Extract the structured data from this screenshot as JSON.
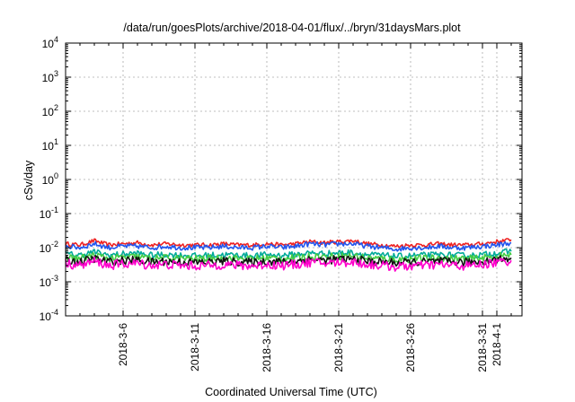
{
  "chart_data": {
    "type": "line",
    "title": "/data/run/goesPlots/archive/2018-04-01/flux/../bryn/31daysMars.plot",
    "xlabel": "Coordinated Universal Time (UTC)",
    "ylabel": "cSv/day",
    "yscale": "log",
    "ylim": [
      0.0001,
      10000
    ],
    "xlim": [
      "2018-03-02",
      "2018-04-02T18:00"
    ],
    "grid": true,
    "x_ticks": [
      {
        "date": "2018-03-06",
        "label": "2018-3-6"
      },
      {
        "date": "2018-03-11",
        "label": "2018-3-11"
      },
      {
        "date": "2018-03-16",
        "label": "2018-3-16"
      },
      {
        "date": "2018-03-21",
        "label": "2018-3-21"
      },
      {
        "date": "2018-03-26",
        "label": "2018-3-26"
      },
      {
        "date": "2018-03-31",
        "label": "2018-3-31"
      },
      {
        "date": "2018-04-01",
        "label": "2018-4-1"
      }
    ],
    "y_ticks": [
      {
        "value": 0.0001,
        "base": "10",
        "exp": "-4"
      },
      {
        "value": 0.001,
        "base": "10",
        "exp": "-3"
      },
      {
        "value": 0.01,
        "base": "10",
        "exp": "-2"
      },
      {
        "value": 0.1,
        "base": "10",
        "exp": "-1"
      },
      {
        "value": 1,
        "base": "10",
        "exp": "0"
      },
      {
        "value": 10,
        "base": "10",
        "exp": "1"
      },
      {
        "value": 100,
        "base": "10",
        "exp": "2"
      },
      {
        "value": 1000,
        "base": "10",
        "exp": "3"
      },
      {
        "value": 10000,
        "base": "10",
        "exp": "4"
      }
    ],
    "x": [
      "2018-03-02",
      "2018-03-03",
      "2018-03-04",
      "2018-03-05",
      "2018-03-06",
      "2018-03-07",
      "2018-03-08",
      "2018-03-09",
      "2018-03-10",
      "2018-03-11",
      "2018-03-12",
      "2018-03-13",
      "2018-03-14",
      "2018-03-15",
      "2018-03-16",
      "2018-03-17",
      "2018-03-18",
      "2018-03-19",
      "2018-03-20",
      "2018-03-21",
      "2018-03-22",
      "2018-03-23",
      "2018-03-24",
      "2018-03-25",
      "2018-03-26",
      "2018-03-27",
      "2018-03-28",
      "2018-03-29",
      "2018-03-30",
      "2018-03-31",
      "2018-04-01",
      "2018-04-02"
    ],
    "series": [
      {
        "color": "#ee2222",
        "values": [
          0.013,
          0.012,
          0.016,
          0.012,
          0.013,
          0.014,
          0.012,
          0.013,
          0.012,
          0.012,
          0.012,
          0.013,
          0.012,
          0.012,
          0.013,
          0.012,
          0.013,
          0.015,
          0.014,
          0.015,
          0.016,
          0.013,
          0.012,
          0.011,
          0.012,
          0.012,
          0.013,
          0.012,
          0.012,
          0.013,
          0.015,
          0.017
        ]
      },
      {
        "color": "#2255ee",
        "values": [
          0.011,
          0.01,
          0.013,
          0.01,
          0.011,
          0.011,
          0.01,
          0.011,
          0.01,
          0.01,
          0.01,
          0.011,
          0.01,
          0.01,
          0.011,
          0.01,
          0.011,
          0.013,
          0.012,
          0.013,
          0.013,
          0.011,
          0.01,
          0.009,
          0.01,
          0.01,
          0.011,
          0.01,
          0.01,
          0.011,
          0.012,
          0.014
        ]
      },
      {
        "color": "#00aa99",
        "values": [
          0.0065,
          0.006,
          0.0075,
          0.006,
          0.0065,
          0.0068,
          0.006,
          0.0063,
          0.006,
          0.0058,
          0.006,
          0.0062,
          0.006,
          0.0058,
          0.0062,
          0.006,
          0.0063,
          0.007,
          0.0067,
          0.007,
          0.0072,
          0.0062,
          0.006,
          0.0055,
          0.0058,
          0.006,
          0.0062,
          0.006,
          0.0058,
          0.0062,
          0.007,
          0.0078
        ]
      },
      {
        "color": "#44cc44",
        "values": [
          0.0052,
          0.0048,
          0.006,
          0.0048,
          0.0052,
          0.0054,
          0.0048,
          0.005,
          0.0048,
          0.0047,
          0.0048,
          0.005,
          0.0048,
          0.0047,
          0.005,
          0.0048,
          0.005,
          0.0056,
          0.0054,
          0.0056,
          0.0058,
          0.005,
          0.0048,
          0.0045,
          0.0047,
          0.0048,
          0.005,
          0.0048,
          0.0047,
          0.005,
          0.0056,
          0.0062
        ]
      },
      {
        "color": "#111111",
        "values": [
          0.0042,
          0.0038,
          0.0048,
          0.0038,
          0.0042,
          0.0043,
          0.0038,
          0.004,
          0.0038,
          0.0037,
          0.0038,
          0.004,
          0.0038,
          0.0037,
          0.004,
          0.0038,
          0.004,
          0.0045,
          0.0043,
          0.0045,
          0.0046,
          0.004,
          0.0038,
          0.0036,
          0.0037,
          0.0038,
          0.004,
          0.0038,
          0.0037,
          0.004,
          0.0045,
          0.005
        ]
      },
      {
        "color": "#ff00cc",
        "values": [
          0.0035,
          0.003,
          0.004,
          0.003,
          0.0033,
          0.0035,
          0.003,
          0.0032,
          0.003,
          0.0029,
          0.003,
          0.0032,
          0.003,
          0.0029,
          0.0032,
          0.003,
          0.0032,
          0.0037,
          0.0035,
          0.0037,
          0.0038,
          0.0032,
          0.003,
          0.0027,
          0.0029,
          0.003,
          0.0032,
          0.003,
          0.0029,
          0.0032,
          0.0037,
          0.0042
        ]
      }
    ]
  }
}
